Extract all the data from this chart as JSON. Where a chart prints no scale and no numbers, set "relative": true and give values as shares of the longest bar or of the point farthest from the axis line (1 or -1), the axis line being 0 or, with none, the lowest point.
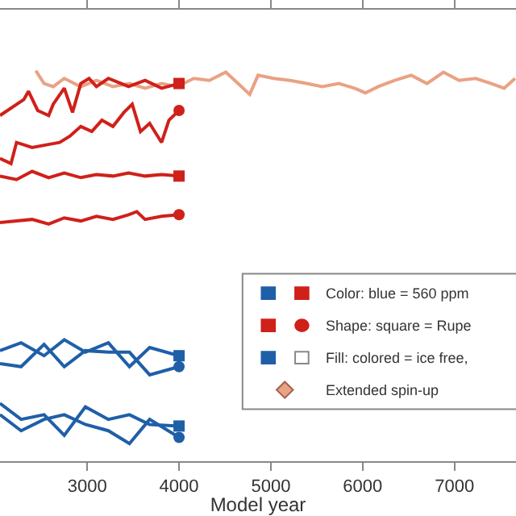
{
  "chart_data": {
    "type": "line",
    "relative": true,
    "xlabel": "Model year",
    "xlim": [
      2050,
      7670
    ],
    "xticks": [
      3000,
      4000,
      5000,
      6000,
      7000
    ],
    "line_style": "solid",
    "annotations": [
      "Color: blue = 560 ppm",
      "Shape: square = Rupe",
      "Fill: colored = ice free,",
      "Extended spin-up"
    ],
    "series": [
      {
        "color": "#e9a283",
        "x": [
          2440,
          2530,
          2630,
          2750,
          2930,
          3100,
          3280,
          3460,
          3630,
          3810,
          3980,
          4160,
          4330,
          4510,
          4680,
          4770,
          4860,
          5030,
          5210,
          5390,
          5560,
          5740,
          5910,
          6030,
          6170,
          6350,
          6530,
          6700,
          6880,
          7050,
          7230,
          7400,
          7540,
          7660
        ],
        "values": [
          1.0,
          0.967,
          0.959,
          0.98,
          0.959,
          0.975,
          0.959,
          0.967,
          0.955,
          0.967,
          0.959,
          0.98,
          0.975,
          0.996,
          0.959,
          0.939,
          0.988,
          0.98,
          0.975,
          0.967,
          0.959,
          0.967,
          0.955,
          0.943,
          0.959,
          0.975,
          0.988,
          0.967,
          0.996,
          0.975,
          0.98,
          0.967,
          0.955,
          0.98
        ]
      },
      {
        "color": "#d0201a",
        "x": [
          2050,
          2310,
          2360,
          2460,
          2580,
          2630,
          2750,
          2840,
          2930,
          3020,
          3100,
          3230,
          3370,
          3450,
          3630,
          3810,
          4000
        ],
        "values": [
          0.885,
          0.926,
          0.947,
          0.898,
          0.885,
          0.914,
          0.955,
          0.893,
          0.967,
          0.98,
          0.959,
          0.98,
          0.967,
          0.959,
          0.975,
          0.955,
          0.967
        ]
      },
      {
        "color": "#d0201a",
        "x": [
          2050,
          2170,
          2230,
          2400,
          2580,
          2700,
          2810,
          2930,
          3050,
          3160,
          3280,
          3400,
          3490,
          3580,
          3680,
          3810,
          3890,
          4000
        ],
        "values": [
          0.775,
          0.762,
          0.816,
          0.803,
          0.811,
          0.816,
          0.832,
          0.857,
          0.844,
          0.873,
          0.857,
          0.893,
          0.914,
          0.844,
          0.865,
          0.816,
          0.873,
          0.898
        ]
      },
      {
        "color": "#d0201a",
        "x": [
          2050,
          2230,
          2400,
          2580,
          2750,
          2930,
          3100,
          3280,
          3450,
          3630,
          3810,
          4000
        ],
        "values": [
          0.73,
          0.721,
          0.742,
          0.726,
          0.738,
          0.726,
          0.734,
          0.73,
          0.738,
          0.73,
          0.734,
          0.73
        ]
      },
      {
        "color": "#d0201a",
        "x": [
          2050,
          2230,
          2400,
          2580,
          2750,
          2930,
          3100,
          3280,
          3450,
          3540,
          3630,
          3810,
          4000
        ],
        "values": [
          0.611,
          0.615,
          0.619,
          0.607,
          0.623,
          0.615,
          0.627,
          0.619,
          0.631,
          0.639,
          0.619,
          0.627,
          0.631
        ]
      },
      {
        "color": "#1f5fa8",
        "x": [
          2050,
          2280,
          2530,
          2750,
          2980,
          3230,
          3460,
          3680,
          4000
        ],
        "values": [
          0.283,
          0.303,
          0.27,
          0.311,
          0.279,
          0.303,
          0.242,
          0.291,
          0.27
        ]
      },
      {
        "color": "#1f5fa8",
        "x": [
          2050,
          2280,
          2530,
          2750,
          2980,
          3230,
          3460,
          3680,
          4000
        ],
        "values": [
          0.25,
          0.242,
          0.299,
          0.242,
          0.283,
          0.279,
          0.279,
          0.221,
          0.242
        ]
      },
      {
        "color": "#1f5fa8",
        "x": [
          2050,
          2280,
          2530,
          2750,
          2980,
          3230,
          3460,
          3680,
          4000
        ],
        "values": [
          0.148,
          0.107,
          0.119,
          0.066,
          0.139,
          0.107,
          0.119,
          0.094,
          0.09
        ]
      },
      {
        "color": "#1f5fa8",
        "x": [
          2050,
          2280,
          2530,
          2750,
          2980,
          3230,
          3460,
          3680,
          4000
        ],
        "values": [
          0.119,
          0.078,
          0.107,
          0.119,
          0.094,
          0.078,
          0.045,
          0.107,
          0.061
        ]
      },
      {
        "type": "scatter",
        "marker": "square",
        "x": [
          4000,
          4000,
          4000,
          4000
        ],
        "values": [
          0.967,
          0.73,
          0.27,
          0.09
        ],
        "colors": [
          "#d0201a",
          "#d0201a",
          "#1f5fa8",
          "#1f5fa8"
        ]
      },
      {
        "type": "scatter",
        "marker": "circle",
        "x": [
          4000,
          4000,
          4000,
          4000
        ],
        "values": [
          0.898,
          0.631,
          0.242,
          0.061
        ],
        "colors": [
          "#d0201a",
          "#d0201a",
          "#1f5fa8",
          "#1f5fa8"
        ]
      }
    ]
  }
}
